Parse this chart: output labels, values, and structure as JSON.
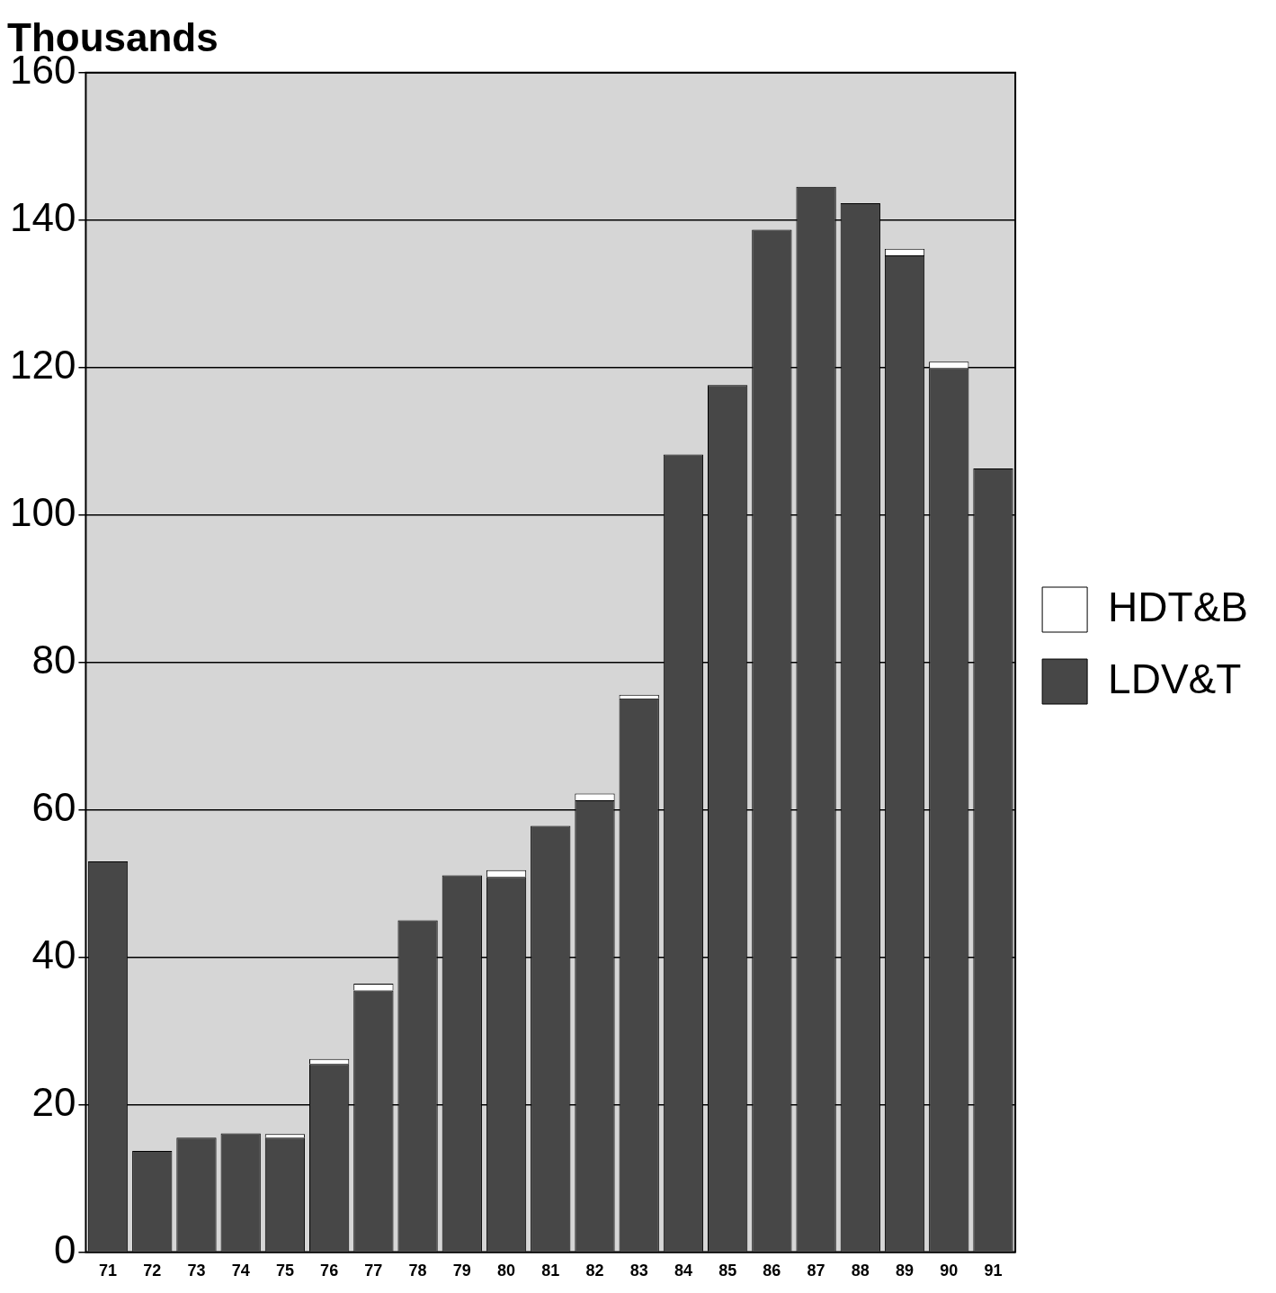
{
  "chart_data": {
    "type": "bar",
    "title": "Thousands",
    "categories": [
      "71",
      "72",
      "73",
      "74",
      "75",
      "76",
      "77",
      "78",
      "79",
      "80",
      "81",
      "82",
      "83",
      "84",
      "85",
      "86",
      "87",
      "88",
      "89",
      "90",
      "91"
    ],
    "series": [
      {
        "name": "LDV&T",
        "color": "#474747",
        "values": [
          53,
          13.7,
          15.5,
          16.1,
          15.5,
          25.5,
          35.5,
          45,
          51.1,
          50.9,
          57.8,
          61.3,
          75.1,
          108.2,
          117.6,
          138.7,
          144.5,
          142.3,
          135.2,
          119.9,
          106.3
        ]
      },
      {
        "name": "HDT&B",
        "color": "#ffffff",
        "values": [
          0,
          0,
          0,
          0,
          0.5,
          0.7,
          0.9,
          0,
          0,
          0.9,
          0,
          0.9,
          0.5,
          0,
          0,
          0,
          0,
          0,
          0.9,
          0.9,
          0
        ]
      }
    ],
    "stacked": true,
    "ylim": [
      0,
      160
    ],
    "yticks": [
      0,
      20,
      40,
      60,
      80,
      100,
      120,
      140,
      160
    ],
    "grid": "y",
    "legend": "right"
  }
}
